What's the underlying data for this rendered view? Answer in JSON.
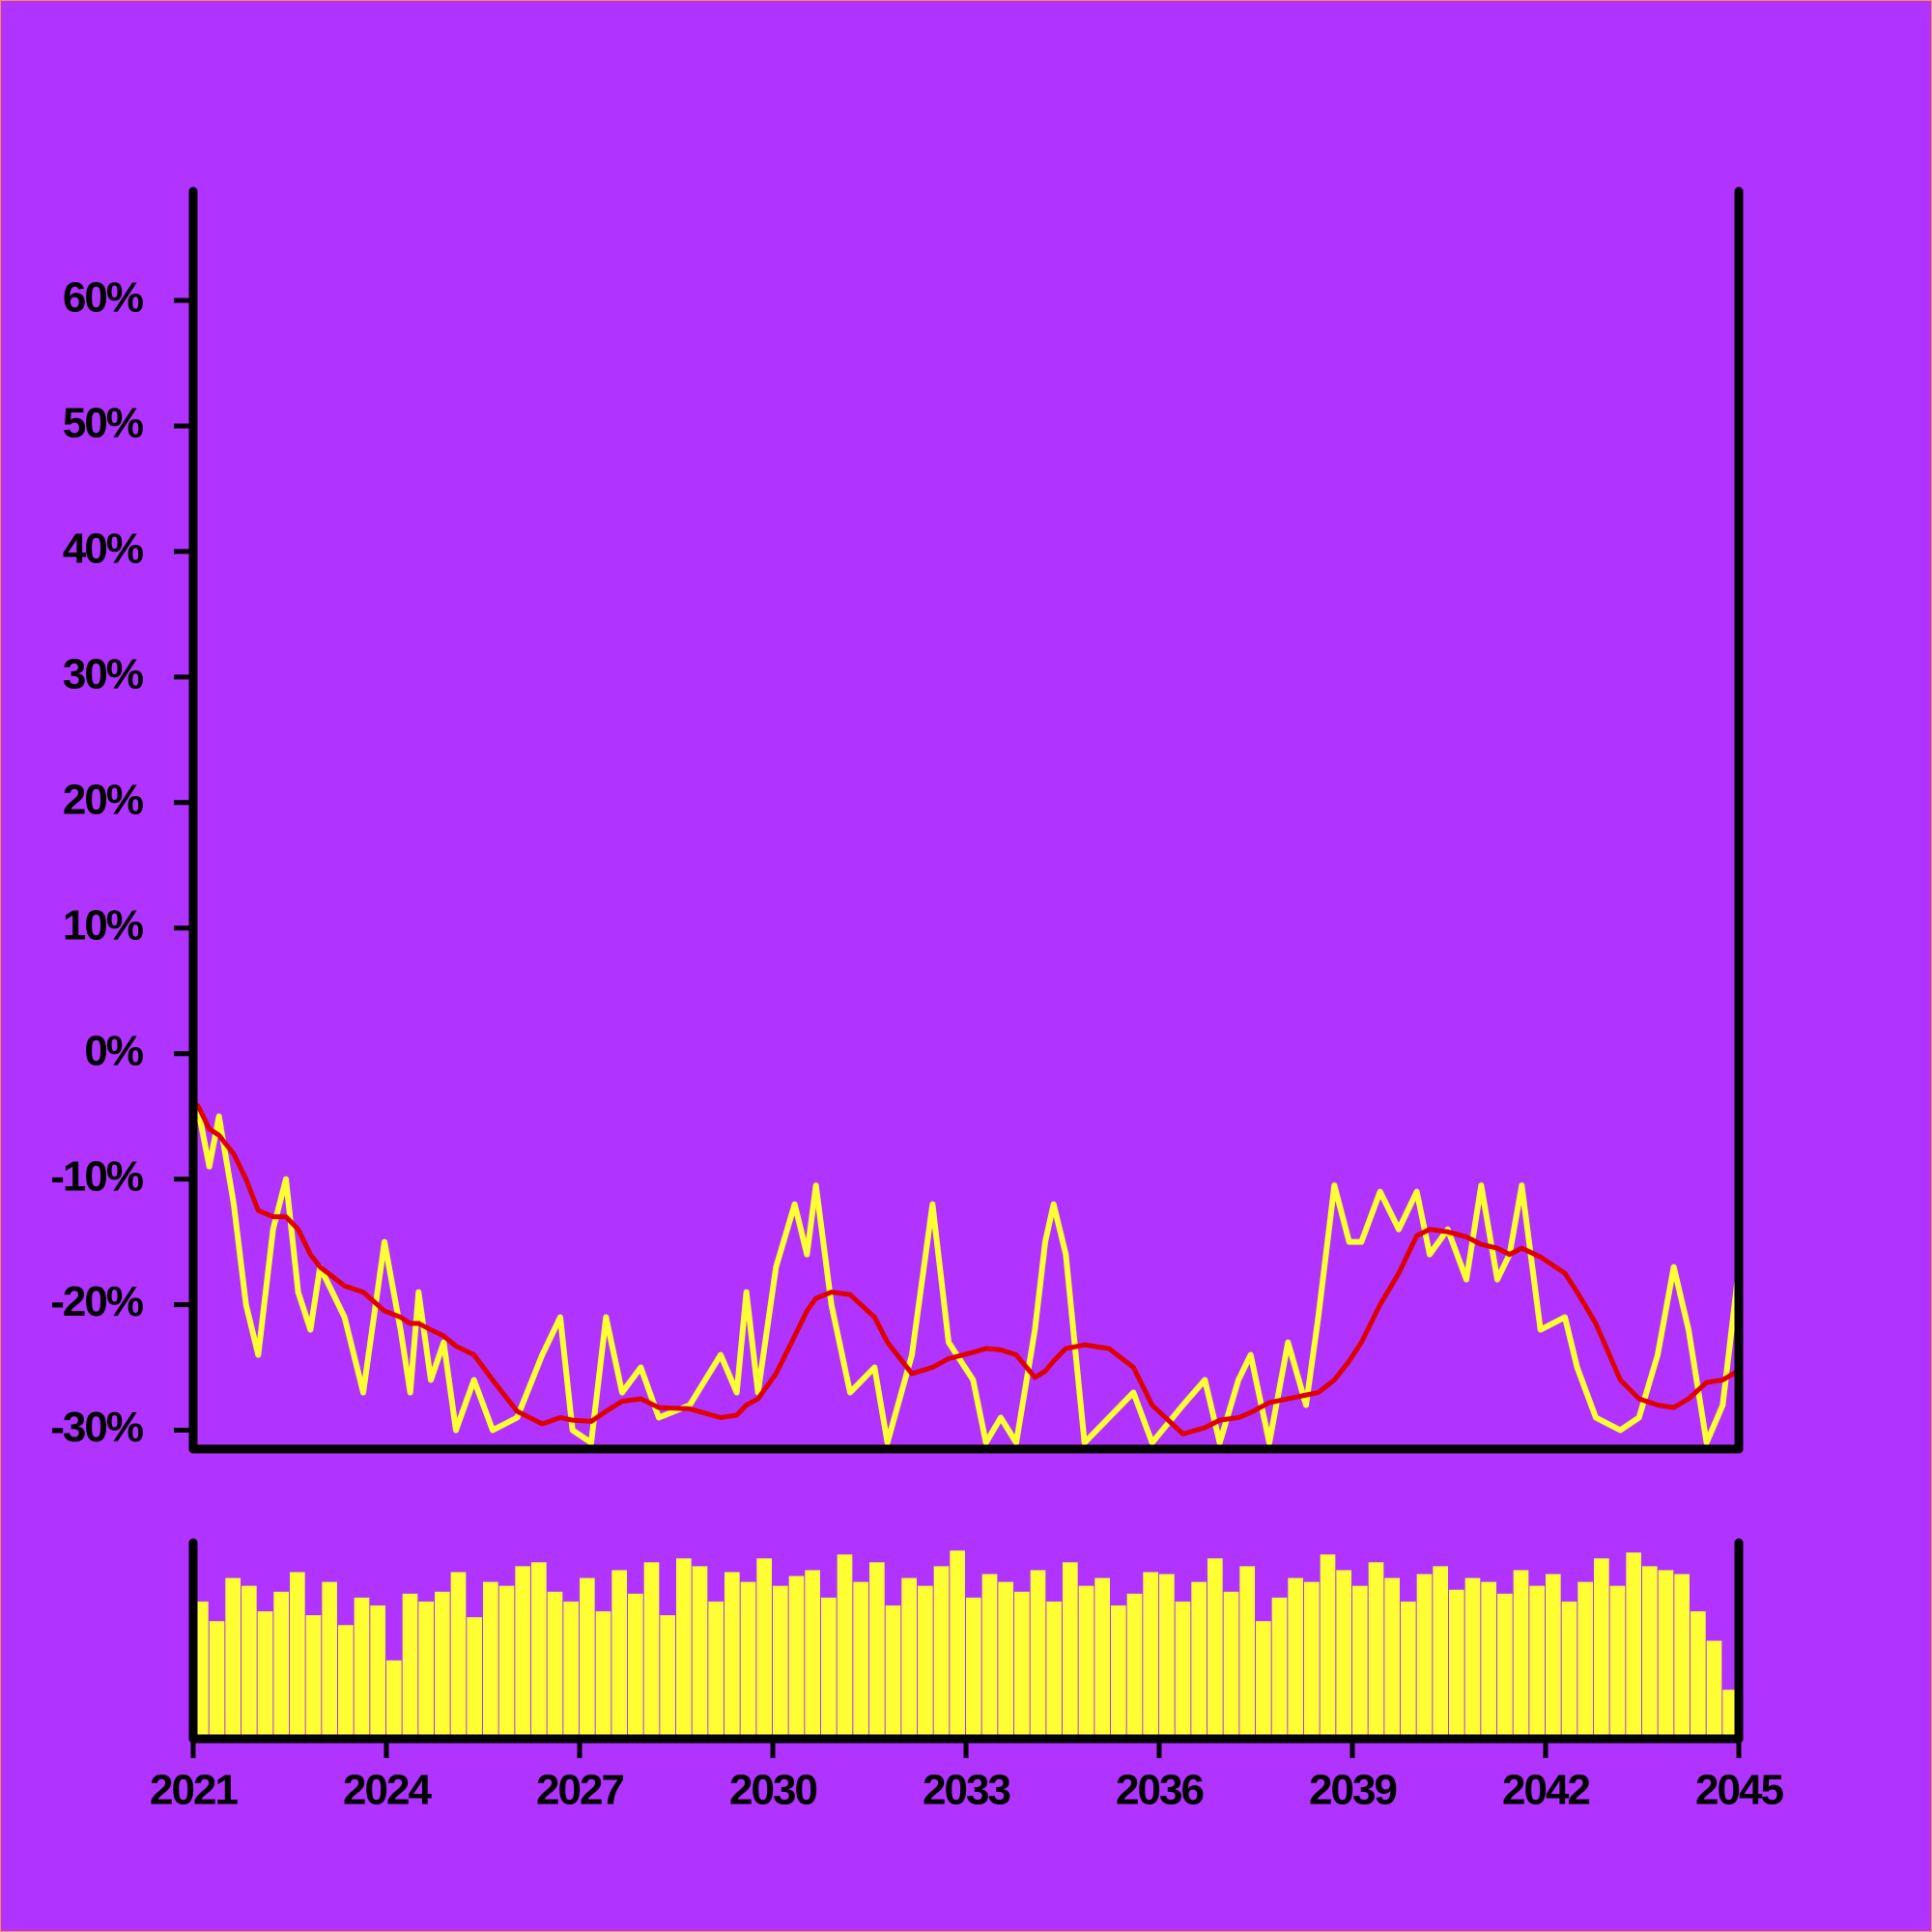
{
  "chart_data": [
    {
      "type": "line",
      "x": [
        2021.06,
        2021.25,
        2021.4,
        2021.63,
        2021.82,
        2022.01,
        2022.24,
        2022.44,
        2022.63,
        2022.82,
        2022.97,
        2023.35,
        2023.64,
        2023.97,
        2024.22,
        2024.37,
        2024.5,
        2024.69,
        2024.89,
        2025.08,
        2025.36,
        2025.65,
        2026.03,
        2026.42,
        2026.7,
        2026.89,
        2027.18,
        2027.41,
        2027.66,
        2027.95,
        2028.23,
        2028.71,
        2029.19,
        2029.44,
        2029.59,
        2029.77,
        2030.05,
        2030.34,
        2030.53,
        2030.67,
        2030.91,
        2031.2,
        2031.58,
        2031.78,
        2032.16,
        2032.48,
        2032.73,
        2033.11,
        2033.31,
        2033.54,
        2033.78,
        2034.07,
        2034.23,
        2034.36,
        2034.55,
        2034.84,
        2035.22,
        2035.6,
        2035.89,
        2036.37,
        2036.71,
        2036.94,
        2037.23,
        2037.42,
        2037.71,
        2038.0,
        2038.28,
        2038.47,
        2038.72,
        2038.95,
        2039.14,
        2039.43,
        2039.72,
        2040.0,
        2040.2,
        2040.48,
        2040.77,
        2041.0,
        2041.25,
        2041.44,
        2041.63,
        2041.92,
        2042.3,
        2042.49,
        2042.78,
        2043.16,
        2043.45,
        2043.74,
        2043.99,
        2044.22,
        2044.5,
        2044.75,
        2044.98
      ],
      "series": [
        {
          "color": "#ffff33",
          "values": [
            -4,
            -9,
            -5,
            -12,
            -20,
            -24,
            -14,
            -10,
            -19,
            -22,
            -17,
            -21,
            -27,
            -15,
            -22,
            -27,
            -19,
            -26,
            -23,
            -30,
            -26,
            -30,
            -29,
            -24,
            -21,
            -30,
            -31,
            -21,
            -27,
            -25,
            -29,
            -28,
            -24,
            -27,
            -19,
            -27,
            -17,
            -12,
            -16,
            -10.5,
            -20,
            -27,
            -25,
            -31,
            -24,
            -12,
            -23,
            -26,
            -31,
            -29,
            -31,
            -22,
            -15,
            -12,
            -16,
            -31,
            -29,
            -27,
            -31,
            -28,
            -26,
            -31,
            -26,
            -24,
            -31,
            -23,
            -28,
            -21,
            -10.5,
            -15,
            -15,
            -11,
            -14,
            -11,
            -16,
            -14,
            -18,
            -10.5,
            -18,
            -16,
            -10.5,
            -22,
            -21,
            -25,
            -29,
            -30,
            -29,
            -24,
            -17,
            -22,
            -31,
            -28,
            -18
          ]
        },
        {
          "color": "#dd0000",
          "values": [
            -4,
            -6,
            -6.5,
            -8,
            -10,
            -12.5,
            -13,
            -13,
            -14,
            -16,
            -17,
            -18.5,
            -19,
            -20.5,
            -21,
            -21.5,
            -21.5,
            -22,
            -22.5,
            -23.3,
            -24,
            -26,
            -28.5,
            -29.5,
            -29,
            -29.2,
            -29.3,
            -28.5,
            -27.7,
            -27.5,
            -28.2,
            -28.3,
            -29,
            -28.8,
            -28,
            -27.5,
            -25.5,
            -22.5,
            -20.5,
            -19.5,
            -19,
            -19.2,
            -21,
            -23,
            -25.5,
            -25,
            -24.3,
            -23.8,
            -23.5,
            -23.6,
            -24,
            -25.8,
            -25.3,
            -24.5,
            -23.5,
            -23.2,
            -23.5,
            -25,
            -28,
            -30.3,
            -29.8,
            -29.2,
            -29,
            -28.6,
            -27.8,
            -27.5,
            -27.2,
            -27,
            -26,
            -24.5,
            -23,
            -20,
            -17.5,
            -14.5,
            -14,
            -14.2,
            -14.6,
            -15.2,
            -15.5,
            -16,
            -15.5,
            -16.2,
            -17.5,
            -19,
            -21.5,
            -26,
            -27.5,
            -28,
            -28.2,
            -27.5,
            -26.2,
            -26,
            -25.3
          ]
        }
      ],
      "xlim": [
        2021,
        2045
      ],
      "ylim": [
        -31.5,
        68.7
      ],
      "yticks": [
        {
          "value": -30,
          "label": "-30%"
        },
        {
          "value": -20,
          "label": "-20%"
        },
        {
          "value": -10,
          "label": "-10%"
        },
        {
          "value": 0,
          "label": "0%"
        },
        {
          "value": 10,
          "label": "10%"
        },
        {
          "value": 20,
          "label": "20%"
        },
        {
          "value": 30,
          "label": "30%"
        },
        {
          "value": 40,
          "label": "40%"
        },
        {
          "value": 50,
          "label": "50%"
        },
        {
          "value": 60,
          "label": "60%"
        }
      ]
    },
    {
      "type": "bar",
      "x": [
        2021,
        2021.25,
        2021.5,
        2021.75,
        2022,
        2022.25,
        2022.5,
        2022.75,
        2023,
        2023.25,
        2023.5,
        2023.75,
        2024,
        2024.25,
        2024.5,
        2024.75,
        2025,
        2025.25,
        2025.5,
        2025.75,
        2026,
        2026.25,
        2026.5,
        2026.75,
        2027,
        2027.25,
        2027.5,
        2027.75,
        2028,
        2028.25,
        2028.5,
        2028.75,
        2029,
        2029.25,
        2029.5,
        2029.75,
        2030,
        2030.25,
        2030.5,
        2030.75,
        2031,
        2031.25,
        2031.5,
        2031.75,
        2032,
        2032.25,
        2032.5,
        2032.75,
        2033,
        2033.25,
        2033.5,
        2033.75,
        2034,
        2034.25,
        2034.5,
        2034.75,
        2035,
        2035.25,
        2035.5,
        2035.75,
        2036,
        2036.25,
        2036.5,
        2036.75,
        2037,
        2037.25,
        2037.5,
        2037.75,
        2038,
        2038.25,
        2038.5,
        2038.75,
        2039,
        2039.25,
        2039.5,
        2039.75,
        2040,
        2040.25,
        2040.5,
        2040.75,
        2041,
        2041.25,
        2041.5,
        2041.75,
        2042,
        2042.25,
        2042.5,
        2042.75,
        2043,
        2043.25,
        2043.5,
        2043.75,
        2044,
        2044.25,
        2044.5,
        2044.75
      ],
      "values": [
        70,
        60,
        82,
        78,
        65,
        75,
        85,
        63,
        80,
        58,
        72,
        68,
        40,
        74,
        70,
        75,
        85,
        62,
        80,
        78,
        88,
        90,
        75,
        70,
        82,
        65,
        86,
        74,
        90,
        63,
        92,
        88,
        70,
        85,
        80,
        92,
        78,
        83,
        86,
        72,
        94,
        80,
        90,
        68,
        82,
        78,
        88,
        96,
        72,
        84,
        80,
        75,
        86,
        70,
        90,
        78,
        82,
        68,
        74,
        85,
        84,
        70,
        80,
        92,
        75,
        88,
        60,
        72,
        82,
        80,
        94,
        86,
        78,
        90,
        82,
        70,
        84,
        88,
        76,
        82,
        80,
        74,
        86,
        78,
        84,
        70,
        80,
        92,
        78,
        95,
        88,
        86,
        84,
        65,
        50,
        25
      ],
      "color": "#ffff33",
      "xlim": [
        2021,
        2045
      ],
      "ylim": [
        0,
        100
      ],
      "xticks": [
        2021,
        2024,
        2027,
        2030,
        2033,
        2036,
        2039,
        2042,
        2045
      ]
    }
  ]
}
